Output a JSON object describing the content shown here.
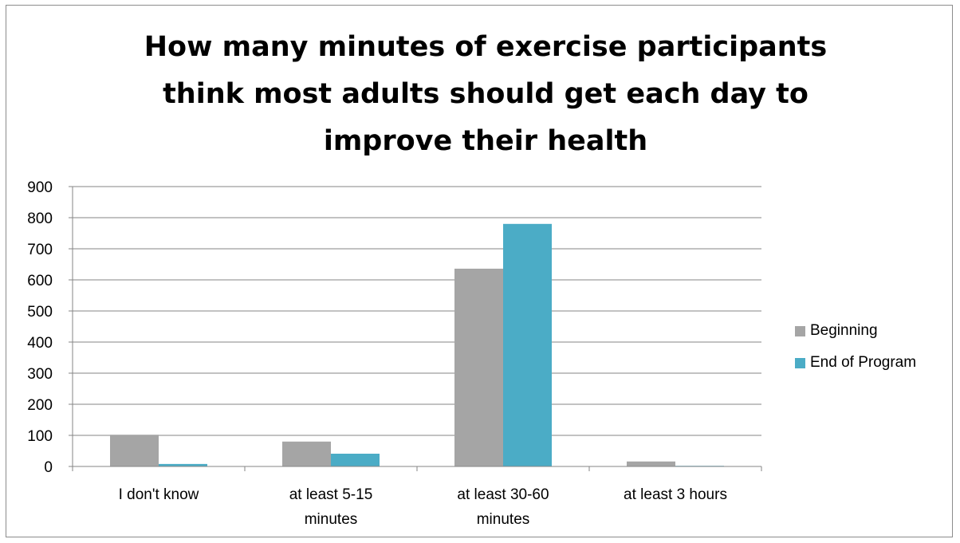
{
  "chart_data": {
    "type": "bar",
    "title_lines": [
      "How many minutes of exercise participants",
      "think most adults should get each day to",
      "improve their health"
    ],
    "categories": [
      [
        "I don't know"
      ],
      [
        "at least 5-15",
        "minutes"
      ],
      [
        "at least 30-60",
        "minutes"
      ],
      [
        "at least 3 hours"
      ]
    ],
    "series": [
      {
        "name": "Beginning",
        "color": "#a5a5a5",
        "values": [
          102,
          80,
          636,
          16
        ]
      },
      {
        "name": "End of Program",
        "color": "#4bacc6",
        "values": [
          8,
          41,
          780,
          2
        ]
      }
    ],
    "ylim": [
      0,
      900
    ],
    "yticks": [
      0,
      100,
      200,
      300,
      400,
      500,
      600,
      700,
      800,
      900
    ],
    "grid": true,
    "legend_position": "right"
  }
}
